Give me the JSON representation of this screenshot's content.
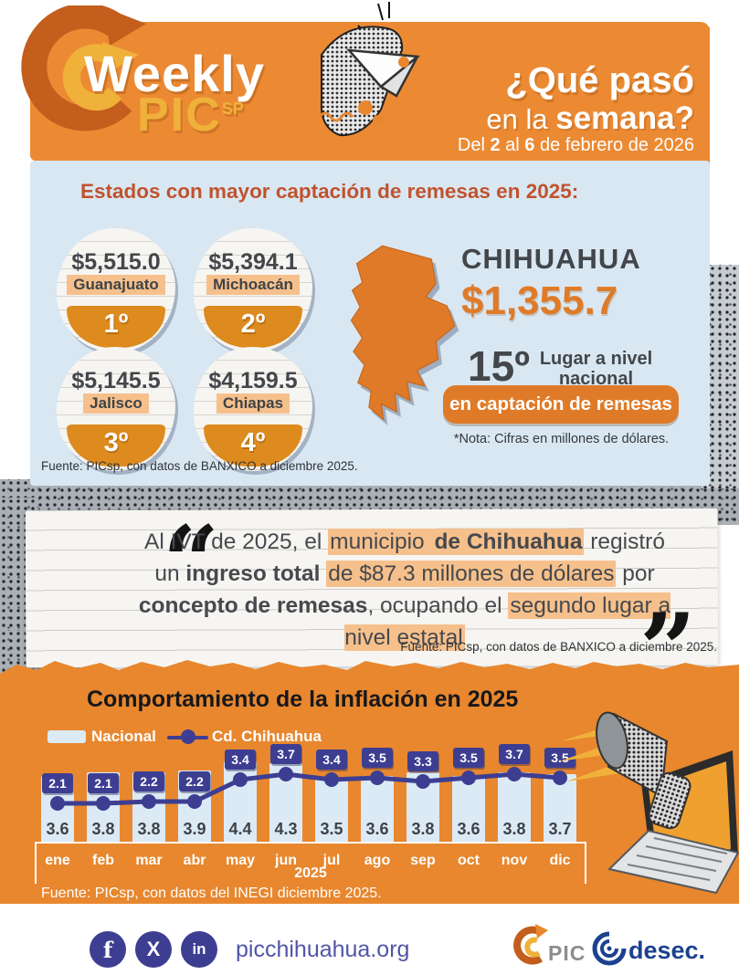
{
  "header": {
    "brand": {
      "word1": "Weekly",
      "word2": "PIC",
      "sup": "SP"
    },
    "title_line1": "¿Qué pasó",
    "title_line2_regular": "en la ",
    "title_line2_bold": "semana?",
    "date": {
      "p1": "Del ",
      "b1": "2",
      "p2": " al ",
      "b2": "6",
      "p3": " de febrero de 2026"
    }
  },
  "remittances": {
    "heading": "Estados con mayor captación de remesas en 2025:",
    "states": [
      {
        "amount": "$5,515.0",
        "name": "Guanajuato",
        "rank": "1º"
      },
      {
        "amount": "$5,394.1",
        "name": "Michoacán",
        "rank": "2º"
      },
      {
        "amount": "$5,145.5",
        "name": "Jalisco",
        "rank": "3º"
      },
      {
        "amount": "$4,159.5",
        "name": "Chiapas",
        "rank": "4º"
      }
    ],
    "chihuahua": {
      "name": "CHIHUAHUA",
      "amount": "$1,355.7",
      "rank": "15º",
      "rank_label_line1": "Lugar a nivel",
      "rank_label_line2": "nacional",
      "badge": "en captación de remesas",
      "note": "*Nota: Cifras en millones de dólares."
    },
    "source": "Fuente:  PICsp, con datos de BANXICO a diciembre 2025."
  },
  "quote": {
    "segments": [
      {
        "text": "Al IVT de 2025, el ",
        "bold": false,
        "highlight": false
      },
      {
        "text": "municipio ",
        "bold": false,
        "highlight": true
      },
      {
        "text": "de Chihuahua",
        "bold": true,
        "highlight": true
      },
      {
        "text": " registró un ",
        "bold": false,
        "highlight": false
      },
      {
        "text": "ingreso total",
        "bold": true,
        "highlight": false
      },
      {
        "text": " ",
        "bold": false,
        "highlight": false
      },
      {
        "text": "de $87.3 millones de dólares",
        "bold": false,
        "highlight": true
      },
      {
        "text": "  por ",
        "bold": false,
        "highlight": false
      },
      {
        "text": "concepto de remesas",
        "bold": true,
        "highlight": false
      },
      {
        "text": ", ocupando el ",
        "bold": false,
        "highlight": false
      },
      {
        "text": "segundo lugar a nivel estatal",
        "bold": false,
        "highlight": true
      }
    ],
    "source": "Fuente:  PICsp, con datos de BANXICO a diciembre 2025."
  },
  "chart_data": {
    "type": "bar",
    "title": "Comportamiento de la inflación en 2025",
    "categories": [
      "ene",
      "feb",
      "mar",
      "abr",
      "may",
      "jun",
      "jul",
      "ago",
      "sep",
      "oct",
      "nov",
      "dic"
    ],
    "x_group_label": "2025",
    "series": [
      {
        "name": "Nacional",
        "type": "bar",
        "color": "#dceaf6",
        "values": [
          3.6,
          3.8,
          3.8,
          3.9,
          4.4,
          4.3,
          3.5,
          3.6,
          3.8,
          3.6,
          3.8,
          3.7
        ]
      },
      {
        "name": "Cd. Chihuahua",
        "type": "line",
        "color": "#3d3e92",
        "values": [
          2.1,
          2.1,
          2.2,
          2.2,
          3.4,
          3.7,
          3.4,
          3.5,
          3.3,
          3.5,
          3.7,
          3.5
        ]
      }
    ],
    "ylim": [
      0,
      5
    ],
    "grid": false,
    "legend_position": "top-left",
    "source": "Fuente:  PICsp, con datos del INEGI diciembre 2025."
  },
  "footer": {
    "website": "picchihuahua.org",
    "social": [
      {
        "name": "facebook",
        "glyph": "f"
      },
      {
        "name": "x-twitter",
        "glyph": "X"
      },
      {
        "name": "linkedin",
        "glyph": "in"
      }
    ],
    "logos": {
      "pic": "PIC",
      "desec": "desec."
    }
  },
  "colors": {
    "banner_orange": "#ec8a33",
    "section_orange": "#e8872e",
    "deep_orange_arrow": "#c35e1d",
    "accent_orange": "#df7b28",
    "circle_orange": "#dd8a1e",
    "yellow": "#f0b13a",
    "panel_light_blue": "#d9e7f2",
    "bar_blue": "#dceaf6",
    "indigo": "#3d3e92",
    "heading_red": "#c0532e",
    "highlight_peach": "#f6c08c",
    "text_dark": "#42464a",
    "desec_blue": "#1c418f"
  }
}
